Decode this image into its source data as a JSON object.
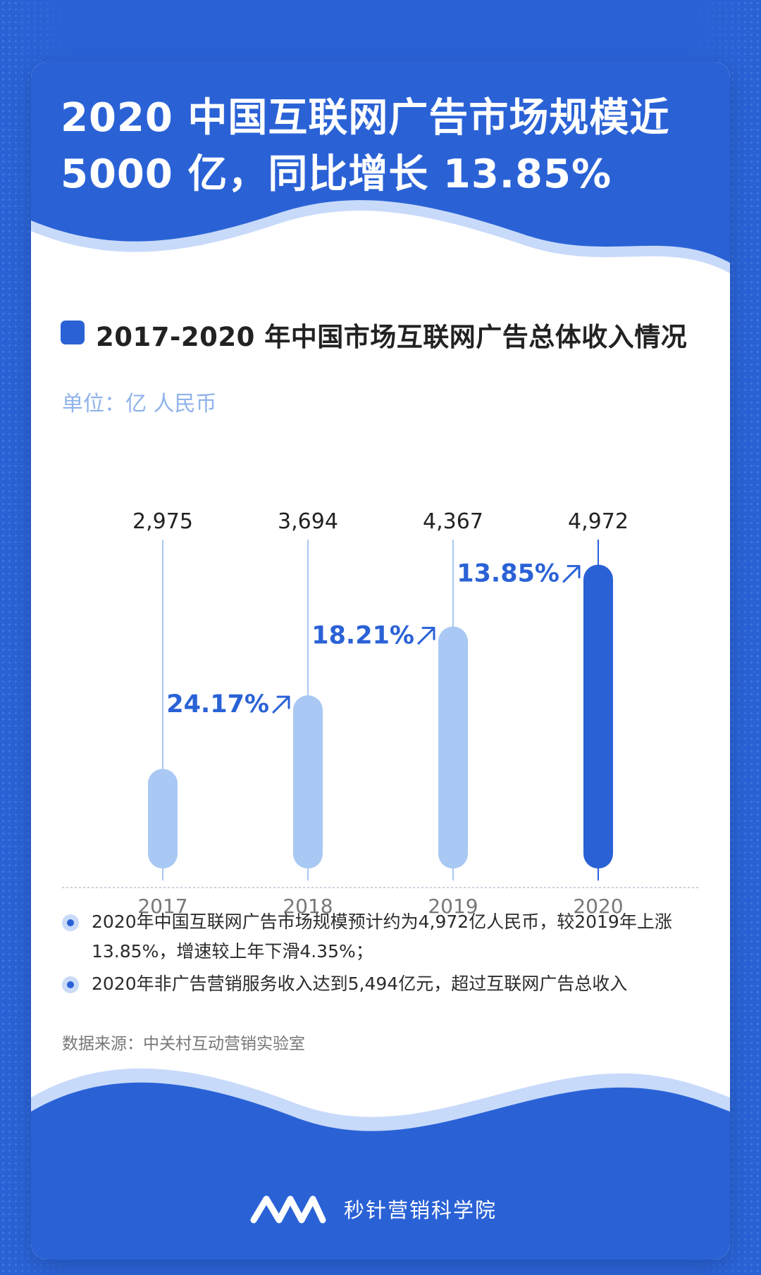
{
  "headline": {
    "line1": "2020 中国互联网广告市场规模近",
    "line2": "5000 亿，同比增长 13.85%"
  },
  "section_title": "2017-2020 年中国市场互联网广告总体收入情况",
  "unit_label": "单位：亿 人民币",
  "chart_data": {
    "type": "bar",
    "categories": [
      "2017",
      "2018",
      "2019",
      "2020"
    ],
    "values": [
      2975,
      3694,
      4367,
      4972
    ],
    "value_labels": [
      "2,975",
      "3,694",
      "4,367",
      "4,972"
    ],
    "growth_labels": [
      "",
      "24.17%",
      "18.21%",
      "13.85%"
    ],
    "growth_direction": "up",
    "title": "",
    "xlabel": "",
    "ylabel": "",
    "ylim": [
      2000,
      5100
    ],
    "grid": false,
    "legend": "none",
    "colors": {
      "normal": "#a9c8f3",
      "highlight": "#2a62d6",
      "growth_text": "#2a62d6"
    }
  },
  "bullets": [
    "2020年中国互联网广告市场规模预计约为4,972亿人民币，较2019年上涨13.85%，增速较上年下滑4.35%；",
    "2020年非广告营销服务收入达到5,494亿元，超过互联网广告总收入"
  ],
  "source": "数据来源：中关村互动营销实验室",
  "brand": {
    "name": "秒针营销科学院",
    "logo": "mz-logo-icon"
  },
  "colors": {
    "brand_blue": "#2a62d6",
    "light_blue": "#a9c8f3"
  }
}
